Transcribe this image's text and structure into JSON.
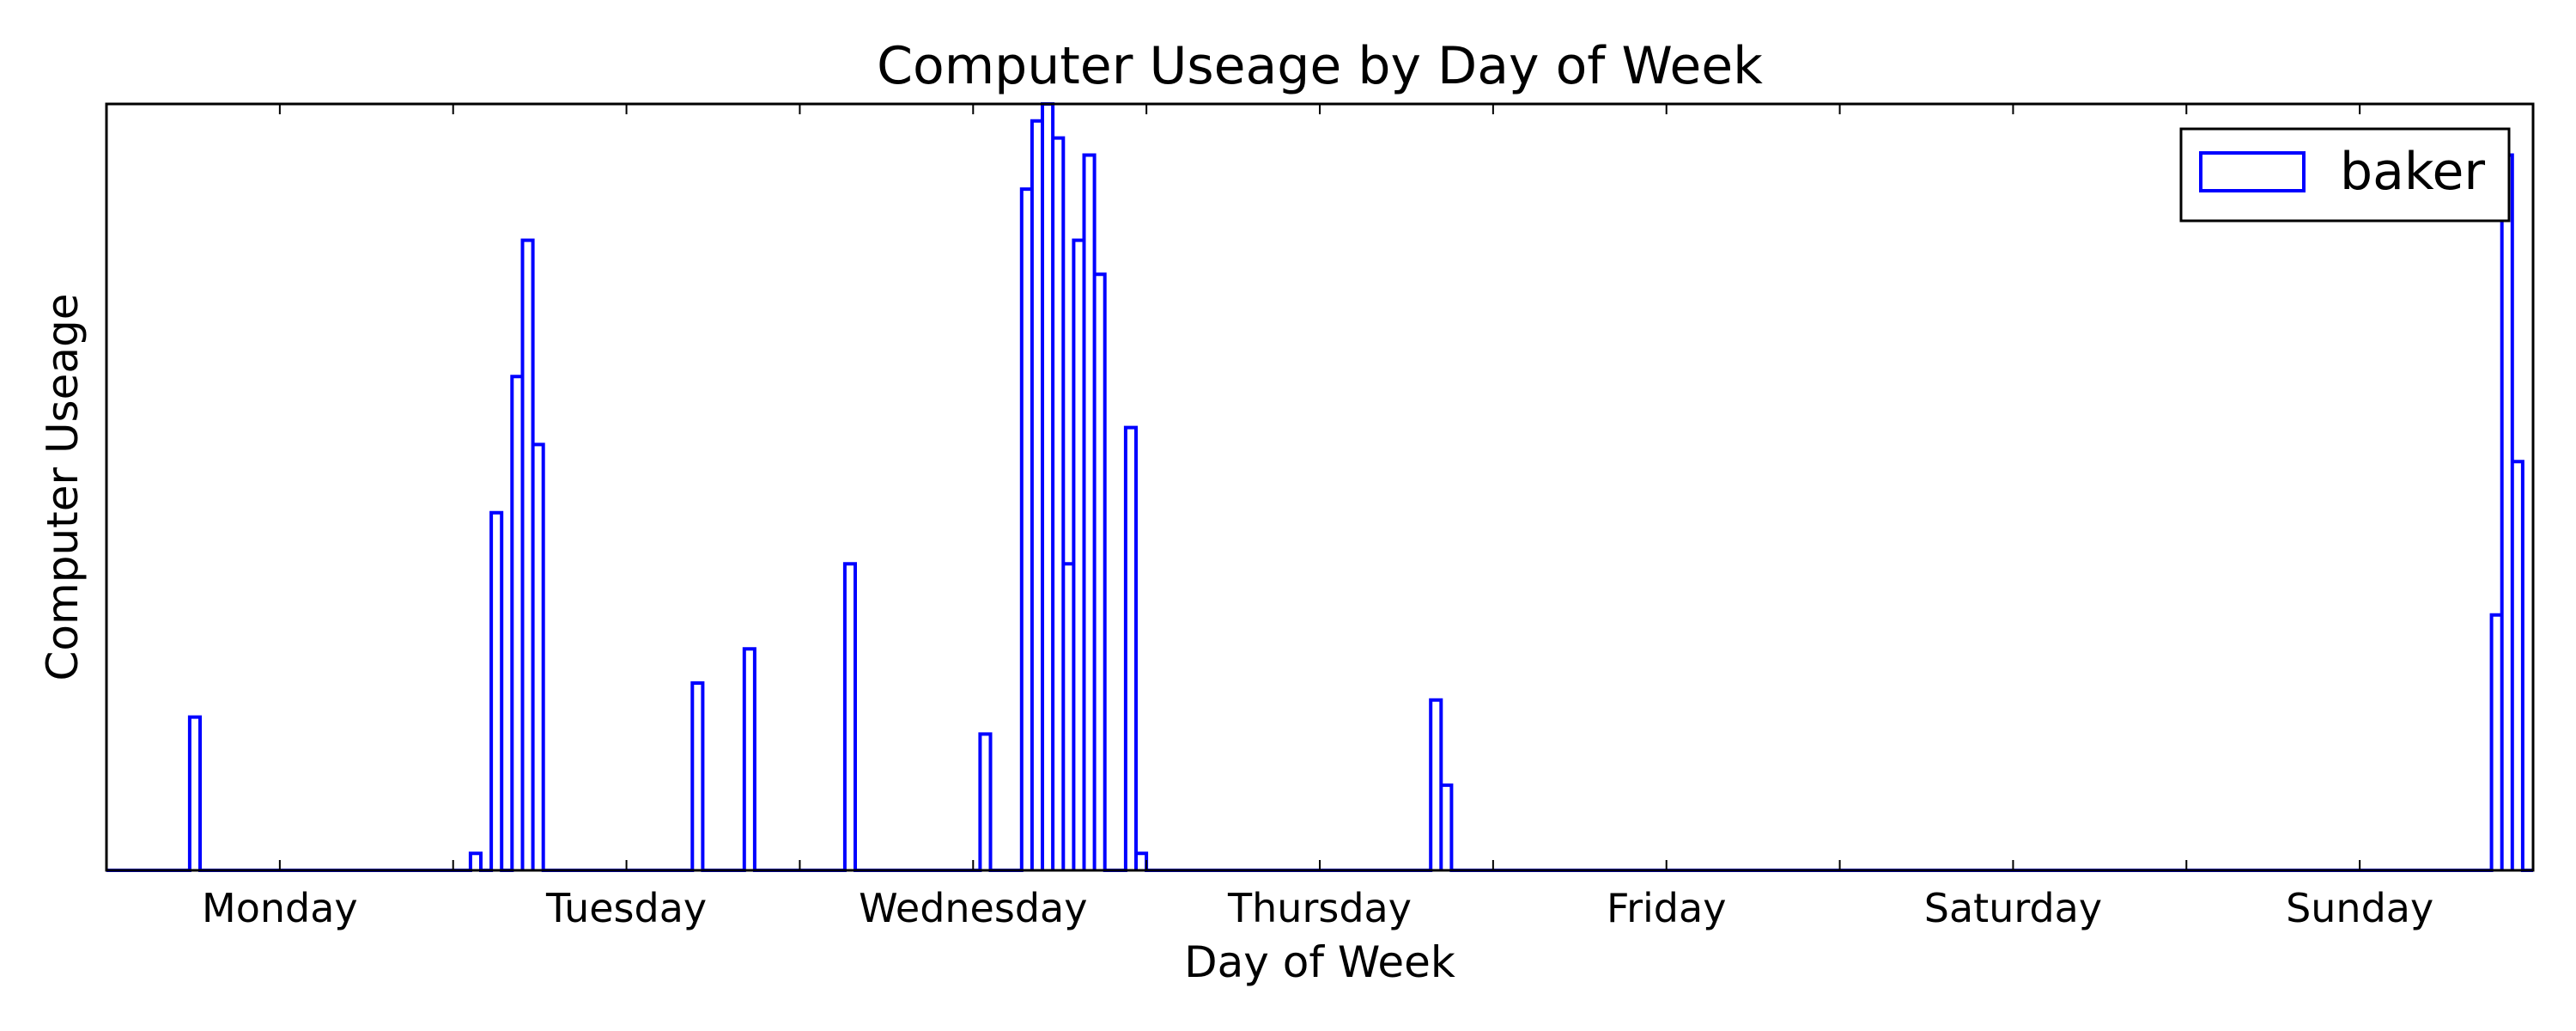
{
  "chart_data": {
    "type": "histogram-step",
    "title": "Computer Useage by Day of Week",
    "xlabel": "Day of Week",
    "ylabel": "Computer Useage",
    "x_ticks": [
      "Monday",
      "Tuesday",
      "Wednesday",
      "Thursday",
      "Friday",
      "Saturday",
      "Sunday"
    ],
    "xlim": [
      -0.5,
      6.5
    ],
    "ylim": [
      0,
      45
    ],
    "y_ticks_shown": false,
    "legend": {
      "position": "top-right"
    },
    "series": [
      {
        "name": "baker",
        "color": "#0000ff",
        "bin_width": 0.03,
        "bins": [
          [
            -0.26,
            9
          ],
          [
            0.55,
            1
          ],
          [
            0.61,
            21
          ],
          [
            0.67,
            29
          ],
          [
            0.7,
            37
          ],
          [
            0.73,
            25
          ],
          [
            1.19,
            11
          ],
          [
            1.34,
            13
          ],
          [
            1.63,
            18
          ],
          [
            2.02,
            8
          ],
          [
            2.14,
            40
          ],
          [
            2.17,
            44
          ],
          [
            2.2,
            45
          ],
          [
            2.23,
            43
          ],
          [
            2.26,
            18
          ],
          [
            2.29,
            37
          ],
          [
            2.32,
            42
          ],
          [
            2.35,
            35
          ],
          [
            2.44,
            26
          ],
          [
            2.47,
            1
          ],
          [
            3.32,
            10
          ],
          [
            3.35,
            5
          ],
          [
            6.38,
            15
          ],
          [
            6.41,
            42
          ],
          [
            6.44,
            24
          ]
        ]
      }
    ]
  }
}
